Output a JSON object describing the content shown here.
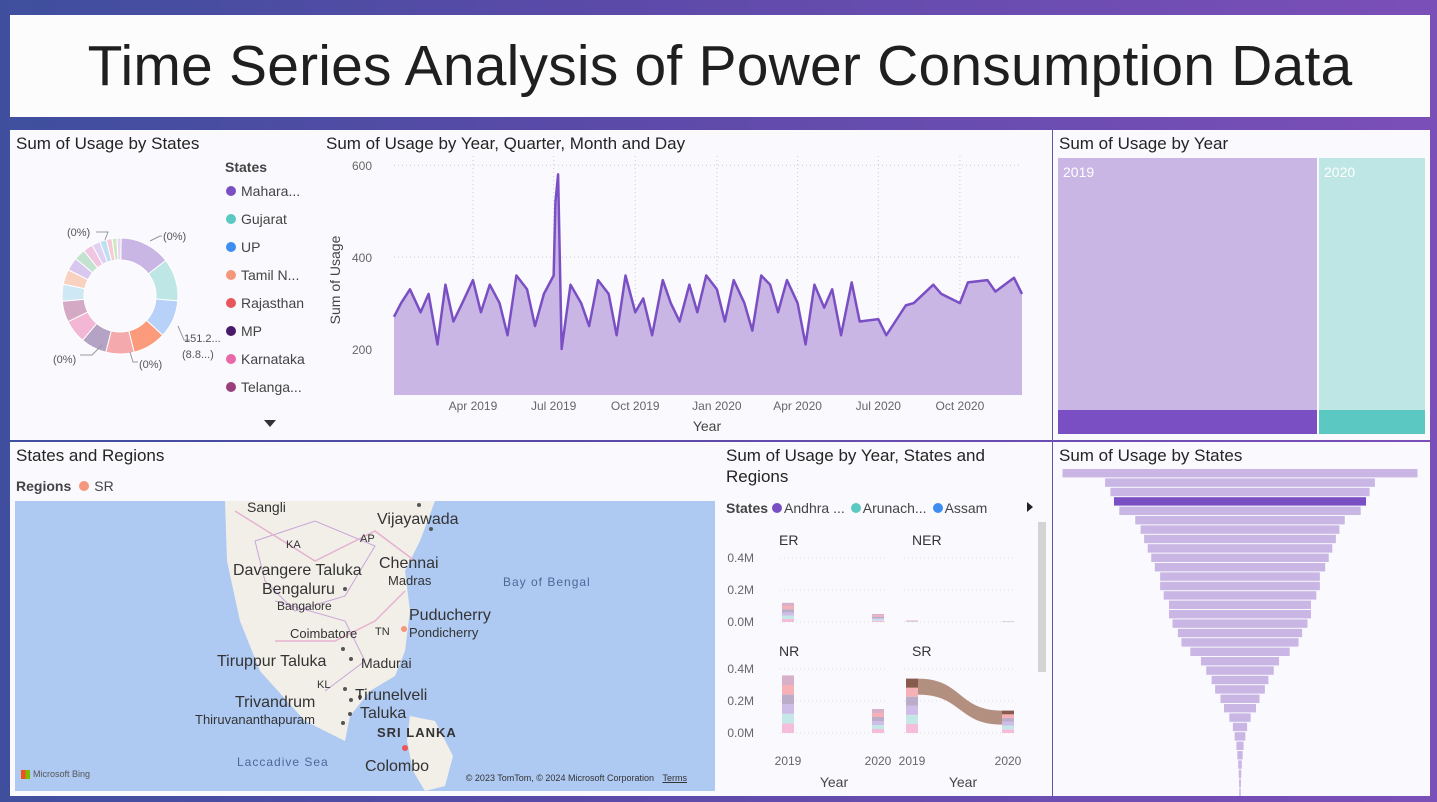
{
  "title": "Time Series Analysis of Power Consumption Data",
  "donut": {
    "title": "Sum of Usage by States",
    "legend_title": "States",
    "legend": [
      {
        "label": "Mahara...",
        "color": "#7b4fc4"
      },
      {
        "label": "Gujarat",
        "color": "#5bc8c1"
      },
      {
        "label": "UP",
        "color": "#3e8ef2"
      },
      {
        "label": "Tamil N...",
        "color": "#f4977a"
      },
      {
        "label": "Rajasthan",
        "color": "#e8555b"
      },
      {
        "label": "MP",
        "color": "#4a1a6a"
      },
      {
        "label": "Karnataka",
        "color": "#e868a8"
      },
      {
        "label": "Telanga...",
        "color": "#9b3e7d"
      }
    ],
    "labels": {
      "top_left": "(0%)",
      "top_right": "(0%)",
      "right_value": "151.2...",
      "right_pct": "(8.8...)",
      "bottom_left": "(0%)",
      "bottom_mid": "(0%)"
    }
  },
  "line_chart": {
    "title": "Sum of Usage by Year, Quarter, Month and Day",
    "xlabel": "Year",
    "ylabel": "Sum of Usage",
    "yticks": [
      "600",
      "400",
      "200"
    ],
    "xticks": [
      "Apr 2019",
      "Jul 2019",
      "Oct 2019",
      "Jan 2020",
      "Apr 2020",
      "Jul 2020",
      "Oct 2020"
    ]
  },
  "treemap": {
    "title": "Sum of Usage by Year",
    "items": [
      {
        "label": "2019"
      },
      {
        "label": "2020"
      }
    ]
  },
  "map": {
    "title": "States and Regions",
    "legend_title": "Regions",
    "legend_item": "SR",
    "labels": {
      "sangli": "Sangli",
      "vijayawada": "Vijayawada",
      "ka": "KA",
      "ap": "AP",
      "davangere": "Davangere Taluka",
      "chennai": "Chennai",
      "madras": "Madras",
      "bengaluru": "Bengaluru",
      "bangalore": "Bangalore",
      "bay": "Bay of Bengal",
      "puducherry": "Puducherry",
      "pondicherry": "Pondicherry",
      "coimbatore": "Coimbatore",
      "tn": "TN",
      "tiruppur": "Tiruppur Taluka",
      "madurai": "Madurai",
      "kl": "KL",
      "trivandrum": "Trivandrum",
      "thiru": "Thiruvananthapuram",
      "tirunelveli": "Tirunelveli",
      "taluka": "Taluka",
      "srilanka": "SRI LANKA",
      "laccadive": "Laccadive Sea",
      "colombo": "Colombo",
      "bing": "Microsoft Bing",
      "copyright": "© 2023 TomTom, © 2024 Microsoft Corporation",
      "terms": "Terms"
    }
  },
  "small_multiples": {
    "title_line1": "Sum of Usage by Year, States and",
    "title_line2": "Regions",
    "legend_title": "States",
    "legend": [
      {
        "label": "Andhra ...",
        "color": "#7b4fc4"
      },
      {
        "label": "Arunach...",
        "color": "#5bc8c1"
      },
      {
        "label": "Assam",
        "color": "#3e8ef2"
      }
    ],
    "panels": [
      "ER",
      "NER",
      "NR",
      "SR"
    ],
    "yticks": [
      "0.4M",
      "0.2M",
      "0.0M"
    ],
    "xticks": [
      "2019",
      "2020"
    ],
    "xlabel": "Year"
  },
  "funnel": {
    "title": "Sum of Usage by States"
  },
  "chart_data": [
    {
      "type": "area",
      "title": "Sum of Usage by Year, Quarter, Month and Day",
      "xlabel": "Year",
      "ylabel": "Sum of Usage",
      "ylim": [
        100,
        620
      ],
      "x": [
        "2019-01-02",
        "2019-01-10",
        "2019-01-20",
        "2019-02-01",
        "2019-02-10",
        "2019-02-20",
        "2019-03-01",
        "2019-03-10",
        "2019-03-20",
        "2019-04-01",
        "2019-04-10",
        "2019-04-20",
        "2019-05-01",
        "2019-05-10",
        "2019-05-20",
        "2019-06-01",
        "2019-06-10",
        "2019-06-20",
        "2019-07-01",
        "2019-07-03",
        "2019-07-06",
        "2019-07-10",
        "2019-07-20",
        "2019-08-01",
        "2019-08-10",
        "2019-08-20",
        "2019-09-01",
        "2019-09-10",
        "2019-09-20",
        "2019-10-01",
        "2019-10-10",
        "2019-10-20",
        "2019-11-01",
        "2019-11-10",
        "2019-11-20",
        "2019-12-01",
        "2019-12-10",
        "2019-12-20",
        "2020-01-01",
        "2020-01-10",
        "2020-01-20",
        "2020-02-01",
        "2020-02-10",
        "2020-02-20",
        "2020-03-01",
        "2020-03-10",
        "2020-03-20",
        "2020-04-01",
        "2020-04-10",
        "2020-04-20",
        "2020-05-01",
        "2020-05-10",
        "2020-05-20",
        "2020-06-01",
        "2020-06-10",
        "2020-07-01",
        "2020-07-10",
        "2020-08-01",
        "2020-08-10",
        "2020-09-01",
        "2020-09-10",
        "2020-10-01",
        "2020-10-10",
        "2020-11-01",
        "2020-11-10",
        "2020-12-01",
        "2020-12-10"
      ],
      "values": [
        270,
        300,
        330,
        280,
        320,
        210,
        340,
        260,
        300,
        350,
        280,
        340,
        300,
        230,
        360,
        330,
        250,
        320,
        360,
        520,
        580,
        200,
        340,
        300,
        250,
        350,
        320,
        230,
        360,
        280,
        310,
        230,
        350,
        300,
        260,
        340,
        280,
        360,
        330,
        260,
        350,
        300,
        240,
        360,
        340,
        280,
        350,
        300,
        210,
        340,
        290,
        330,
        230,
        345,
        260,
        265,
        230,
        295,
        300,
        340,
        320,
        300,
        345,
        350,
        325,
        355,
        320
      ]
    },
    {
      "type": "pie",
      "title": "Sum of Usage by States",
      "labels": [
        "Mahara...",
        "Gujarat",
        "UP",
        "Tamil N...",
        "Rajasthan",
        "MP",
        "Karnataka",
        "Telanga..."
      ],
      "values": [
        13.5,
        11.3,
        10.0,
        8.8,
        7.5,
        6.9,
        6.2,
        5.6
      ]
    },
    {
      "type": "bar",
      "title": "Sum of Usage by Year",
      "categories": [
        "2019",
        "2020"
      ],
      "values": [
        1700000,
        500000
      ]
    },
    {
      "type": "bar",
      "title": "Sum of Usage by Year, States and Regions",
      "categories": [
        "2019",
        "2020"
      ],
      "series": [
        {
          "name": "ER",
          "values": [
            0.12,
            0.05
          ]
        },
        {
          "name": "NER",
          "values": [
            0.01,
            0.005
          ]
        },
        {
          "name": "NR",
          "values": [
            0.36,
            0.15
          ]
        },
        {
          "name": "SR",
          "values": [
            0.34,
            0.14
          ]
        }
      ],
      "ylim": [
        0,
        0.45
      ]
    },
    {
      "type": "bar",
      "title": "Sum of Usage by States",
      "values": [
        100,
        76,
        73,
        71,
        68,
        59,
        56,
        54,
        52,
        50,
        48,
        45,
        45,
        43,
        40,
        40,
        38,
        35,
        33,
        28,
        22,
        19,
        16,
        14,
        11,
        9,
        6,
        4,
        3,
        2,
        1.5,
        1,
        0.7,
        0.5,
        0.4,
        0.3,
        0.2,
        0.1,
        0.1
      ]
    }
  ]
}
